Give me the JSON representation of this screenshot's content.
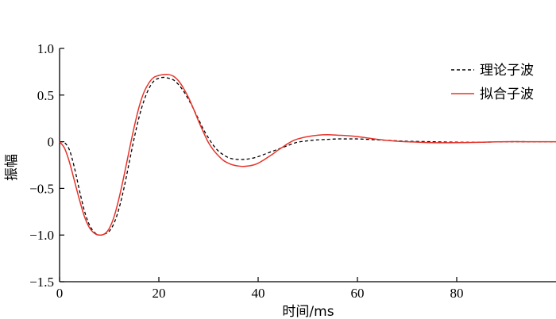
{
  "chart_data": {
    "type": "line",
    "xlabel": "时间/ms",
    "ylabel": "振幅",
    "xlim": [
      0,
      100
    ],
    "ylim": [
      -1.5,
      1.0
    ],
    "xticks": [
      0,
      20,
      40,
      60,
      80
    ],
    "xtick_labels": [
      "0",
      "20",
      "40",
      "60",
      "80"
    ],
    "yticks": [
      1.0,
      0.5,
      0,
      -0.5,
      -1.0,
      -1.5
    ],
    "ytick_labels": [
      "1.0",
      "0.5",
      "0",
      "−0.5",
      "−1.0",
      "−1.5"
    ],
    "grid": false,
    "legend_position": "top-right",
    "series": [
      {
        "name": "理论子波",
        "color": "#000000",
        "dash": "dashed",
        "x": [
          0,
          1,
          2,
          3,
          4,
          5,
          6,
          7,
          8,
          9,
          10,
          11,
          12,
          13,
          14,
          15,
          16,
          17,
          18,
          19,
          20,
          21,
          22,
          23,
          24,
          25,
          26,
          27,
          28,
          29,
          30,
          31,
          32,
          33,
          34,
          35,
          36,
          37,
          38,
          39,
          40,
          41,
          42,
          43,
          44,
          45,
          46,
          47,
          48,
          50,
          52,
          54,
          56,
          58,
          60,
          62,
          64,
          66,
          68,
          70,
          75,
          80,
          85,
          90,
          95,
          100
        ],
        "y": [
          0,
          -0.01,
          -0.09,
          -0.28,
          -0.52,
          -0.74,
          -0.89,
          -0.97,
          -1.0,
          -0.99,
          -0.96,
          -0.87,
          -0.71,
          -0.49,
          -0.23,
          0.03,
          0.26,
          0.44,
          0.57,
          0.65,
          0.68,
          0.69,
          0.68,
          0.66,
          0.61,
          0.54,
          0.45,
          0.35,
          0.24,
          0.13,
          0.04,
          -0.04,
          -0.1,
          -0.14,
          -0.17,
          -0.185,
          -0.19,
          -0.19,
          -0.185,
          -0.175,
          -0.16,
          -0.14,
          -0.12,
          -0.1,
          -0.08,
          -0.06,
          -0.04,
          -0.02,
          -0.005,
          0.01,
          0.02,
          0.025,
          0.03,
          0.03,
          0.03,
          0.025,
          0.02,
          0.015,
          0.01,
          0.005,
          0.0,
          -0.005,
          -0.005,
          0.0,
          0.0,
          0.0
        ]
      },
      {
        "name": "拟合子波",
        "color": "#e8332a",
        "dash": "solid",
        "x": [
          0,
          1,
          2,
          3,
          4,
          5,
          6,
          7,
          8,
          9,
          10,
          11,
          12,
          13,
          14,
          15,
          16,
          17,
          18,
          19,
          20,
          21,
          22,
          23,
          24,
          25,
          26,
          27,
          28,
          29,
          30,
          31,
          32,
          33,
          34,
          35,
          36,
          37,
          38,
          39,
          40,
          41,
          42,
          43,
          44,
          45,
          46,
          47,
          48,
          50,
          52,
          54,
          56,
          58,
          60,
          62,
          64,
          66,
          68,
          70,
          75,
          80,
          85,
          90,
          95,
          100
        ],
        "y": [
          0,
          -0.07,
          -0.22,
          -0.42,
          -0.62,
          -0.8,
          -0.92,
          -0.98,
          -1.0,
          -0.99,
          -0.93,
          -0.8,
          -0.6,
          -0.36,
          -0.1,
          0.15,
          0.37,
          0.53,
          0.63,
          0.69,
          0.71,
          0.72,
          0.72,
          0.7,
          0.65,
          0.57,
          0.47,
          0.35,
          0.22,
          0.1,
          -0.01,
          -0.09,
          -0.15,
          -0.2,
          -0.23,
          -0.25,
          -0.26,
          -0.265,
          -0.26,
          -0.25,
          -0.23,
          -0.2,
          -0.165,
          -0.13,
          -0.09,
          -0.055,
          -0.02,
          0.01,
          0.03,
          0.055,
          0.07,
          0.075,
          0.07,
          0.065,
          0.055,
          0.04,
          0.025,
          0.015,
          0.005,
          0.0,
          -0.01,
          -0.01,
          -0.005,
          0.0,
          0.0,
          0.0
        ]
      }
    ]
  }
}
